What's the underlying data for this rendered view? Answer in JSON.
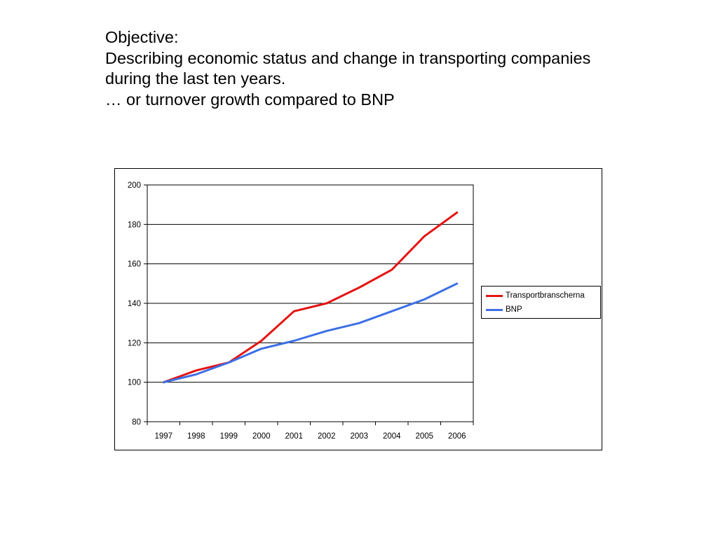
{
  "slide": {
    "lines": [
      "Objective:",
      "Describing economic status and change in transporting companies",
      "during the last ten years.",
      "… or turnover growth compared to BNP"
    ]
  },
  "chart_data": {
    "type": "line",
    "categories": [
      "1997",
      "1998",
      "1999",
      "2000",
      "2001",
      "2002",
      "2003",
      "2004",
      "2005",
      "2006"
    ],
    "series": [
      {
        "name": "Transportbranscherna",
        "color": "#e31414",
        "values": [
          100,
          106,
          110,
          121,
          136,
          140,
          148,
          157,
          174,
          186
        ]
      },
      {
        "name": "BNP",
        "color": "#3c6fe6",
        "values": [
          100,
          104,
          110,
          117,
          121,
          126,
          130,
          136,
          142,
          150
        ]
      }
    ],
    "ylim": [
      80,
      200
    ],
    "yticks": [
      "200",
      "180",
      "160",
      "140",
      "120",
      "100",
      "80"
    ],
    "grid": true,
    "legend_position": "right"
  }
}
